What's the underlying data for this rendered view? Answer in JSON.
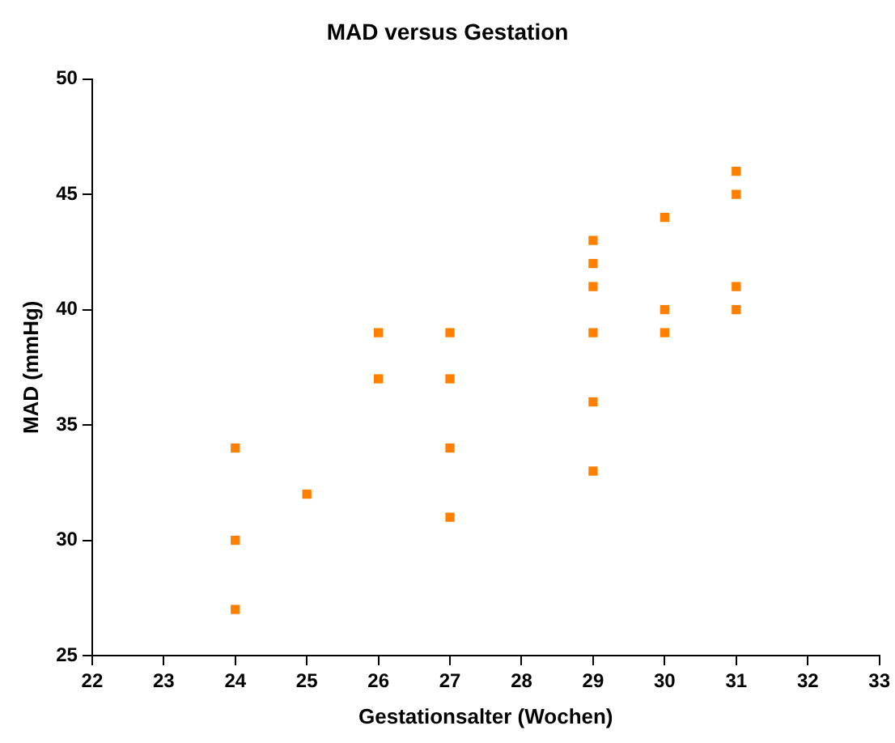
{
  "chart_data": {
    "type": "scatter",
    "title": "MAD versus Gestation",
    "xlabel": "Gestationsalter (Wochen)",
    "ylabel": "MAD (mmHg)",
    "x": [
      24,
      24,
      24,
      25,
      26,
      26,
      27,
      27,
      27,
      27,
      29,
      29,
      29,
      29,
      29,
      29,
      30,
      30,
      30,
      31,
      31,
      31,
      31
    ],
    "series": [
      {
        "color": "#ff8000",
        "values": [
          34,
          30,
          27,
          32,
          39,
          37,
          39,
          37,
          34,
          31,
          43,
          42,
          41,
          39,
          36,
          33,
          44,
          40,
          39,
          46,
          45,
          41,
          40
        ]
      }
    ],
    "xlim": [
      22,
      33
    ],
    "xticks": [
      22,
      23,
      24,
      25,
      26,
      27,
      28,
      29,
      30,
      31,
      32,
      33
    ],
    "ylim": [
      25,
      50
    ],
    "yticks": [
      25,
      30,
      35,
      40,
      45,
      50
    ],
    "grid": false,
    "legend": false,
    "marker": "square"
  }
}
